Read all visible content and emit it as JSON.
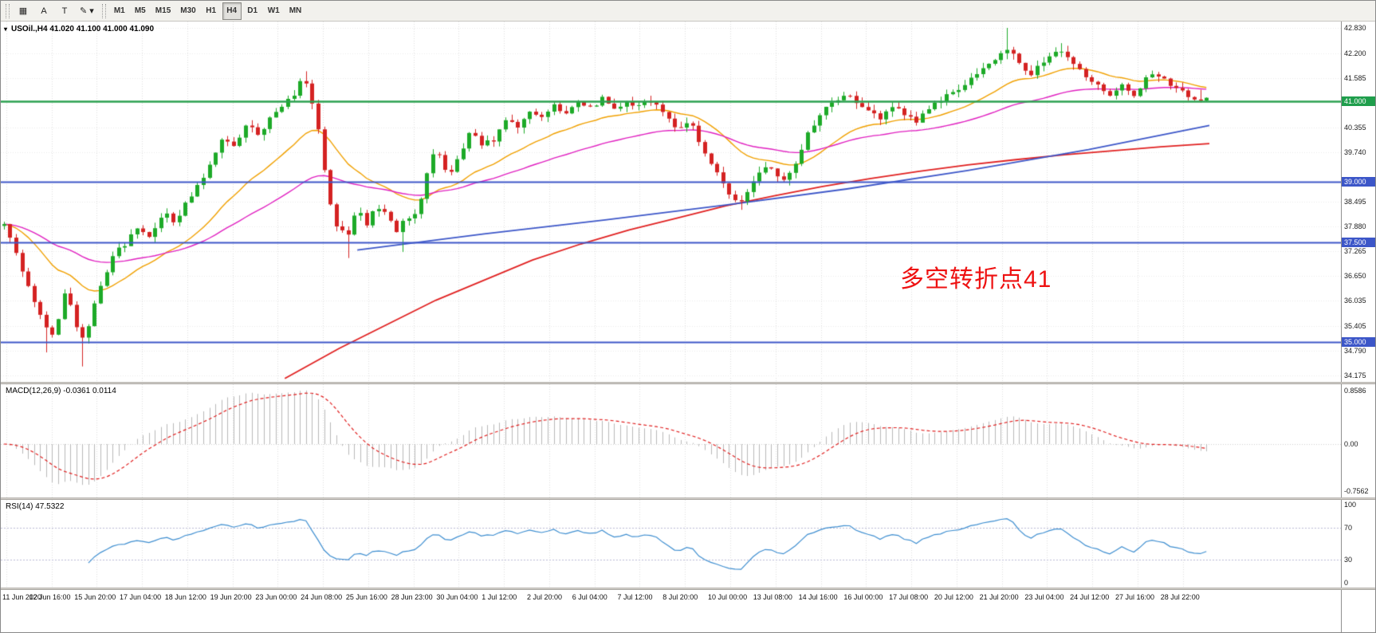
{
  "toolbar": {
    "tools": [
      {
        "name": "chart-grid-icon",
        "glyph": "▦"
      },
      {
        "name": "font-label-tool",
        "glyph": "A"
      },
      {
        "name": "text-tool",
        "glyph": "T"
      },
      {
        "name": "pen-color-tool",
        "glyph": "✎ ▾"
      }
    ],
    "timeframes": [
      "M1",
      "M5",
      "M15",
      "M30",
      "H1",
      "H4",
      "D1",
      "W1",
      "MN"
    ],
    "active_timeframe": "H4"
  },
  "symbol_header": {
    "collapse_icon": "▾",
    "text": "USOil.,H4 41.020 41.100 41.000 41.090"
  },
  "annotation": {
    "text": "多空转折点41",
    "color": "#ee1111"
  },
  "price_axis": {
    "min": 34.175,
    "max": 42.83,
    "labels": [
      "42.830",
      "42.200",
      "41.585",
      "40.355",
      "39.740",
      "38.495",
      "37.880",
      "37.265",
      "36.650",
      "36.035",
      "35.405",
      "34.790",
      "34.175"
    ],
    "label_values": [
      42.83,
      42.2,
      41.585,
      40.355,
      39.74,
      38.495,
      37.88,
      37.265,
      36.65,
      36.035,
      35.405,
      34.79,
      34.175
    ],
    "tags": [
      {
        "text": "41.000",
        "value": 41.0,
        "color": "#1f9e4c"
      },
      {
        "text": "39.000",
        "value": 39.0,
        "color": "#3c56c8"
      },
      {
        "text": "37.500",
        "value": 37.5,
        "color": "#3c56c8"
      },
      {
        "text": "35.000",
        "value": 35.0,
        "color": "#3c56c8"
      }
    ]
  },
  "hlines": [
    {
      "value": 41.0,
      "color": "#2ca050",
      "width": 2.5
    },
    {
      "value": 39.0,
      "color": "#3c56c8",
      "width": 2
    },
    {
      "value": 37.5,
      "color": "#3c56c8",
      "width": 2
    },
    {
      "value": 35.0,
      "color": "#3c56c8",
      "width": 2
    }
  ],
  "chart_data": {
    "type": "candlestick",
    "symbol": "USOil",
    "timeframe": "H4",
    "ohlc_current": {
      "open": 41.02,
      "high": 41.1,
      "low": 41.0,
      "close": 41.09
    },
    "n_candles": 200,
    "candle_up_color": "#1daa28",
    "candle_down_color": "#d42222",
    "price_path": [
      [
        0.0,
        37.9
      ],
      [
        0.01,
        37.2
      ],
      [
        0.022,
        36.3
      ],
      [
        0.034,
        35.4
      ],
      [
        0.042,
        35.1
      ],
      [
        0.05,
        36.3
      ],
      [
        0.058,
        35.7
      ],
      [
        0.064,
        34.95
      ],
      [
        0.072,
        35.6
      ],
      [
        0.082,
        36.6
      ],
      [
        0.092,
        37.2
      ],
      [
        0.102,
        37.5
      ],
      [
        0.112,
        37.9
      ],
      [
        0.122,
        37.55
      ],
      [
        0.132,
        38.25
      ],
      [
        0.142,
        37.95
      ],
      [
        0.152,
        38.5
      ],
      [
        0.162,
        38.9
      ],
      [
        0.172,
        39.5
      ],
      [
        0.182,
        40.15
      ],
      [
        0.192,
        39.85
      ],
      [
        0.202,
        40.45
      ],
      [
        0.212,
        40.1
      ],
      [
        0.222,
        40.6
      ],
      [
        0.232,
        40.85
      ],
      [
        0.242,
        41.25
      ],
      [
        0.249,
        41.55
      ],
      [
        0.256,
        41.05
      ],
      [
        0.262,
        40.2
      ],
      [
        0.27,
        38.6
      ],
      [
        0.278,
        37.8
      ],
      [
        0.286,
        37.6
      ],
      [
        0.294,
        38.3
      ],
      [
        0.302,
        37.85
      ],
      [
        0.31,
        38.45
      ],
      [
        0.318,
        38.15
      ],
      [
        0.326,
        37.8
      ],
      [
        0.334,
        38.1
      ],
      [
        0.344,
        38.3
      ],
      [
        0.352,
        39.2
      ],
      [
        0.36,
        39.9
      ],
      [
        0.368,
        39.15
      ],
      [
        0.378,
        39.6
      ],
      [
        0.388,
        40.3
      ],
      [
        0.398,
        39.9
      ],
      [
        0.408,
        40.1
      ],
      [
        0.418,
        40.6
      ],
      [
        0.428,
        40.3
      ],
      [
        0.438,
        40.8
      ],
      [
        0.448,
        40.6
      ],
      [
        0.458,
        40.9
      ],
      [
        0.468,
        40.7
      ],
      [
        0.478,
        41.0
      ],
      [
        0.488,
        40.85
      ],
      [
        0.498,
        41.1
      ],
      [
        0.508,
        40.8
      ],
      [
        0.518,
        41.0
      ],
      [
        0.528,
        40.9
      ],
      [
        0.538,
        41.05
      ],
      [
        0.55,
        40.7
      ],
      [
        0.56,
        40.3
      ],
      [
        0.57,
        40.5
      ],
      [
        0.58,
        39.9
      ],
      [
        0.592,
        39.3
      ],
      [
        0.604,
        38.7
      ],
      [
        0.614,
        38.45
      ],
      [
        0.622,
        39.0
      ],
      [
        0.632,
        39.4
      ],
      [
        0.642,
        39.2
      ],
      [
        0.65,
        38.95
      ],
      [
        0.658,
        39.5
      ],
      [
        0.668,
        40.2
      ],
      [
        0.678,
        40.7
      ],
      [
        0.688,
        41.0
      ],
      [
        0.698,
        41.15
      ],
      [
        0.708,
        41.05
      ],
      [
        0.718,
        40.8
      ],
      [
        0.728,
        40.6
      ],
      [
        0.738,
        40.9
      ],
      [
        0.748,
        40.7
      ],
      [
        0.758,
        40.5
      ],
      [
        0.768,
        40.8
      ],
      [
        0.778,
        41.0
      ],
      [
        0.788,
        41.3
      ],
      [
        0.798,
        41.4
      ],
      [
        0.808,
        41.6
      ],
      [
        0.818,
        41.9
      ],
      [
        0.828,
        42.1
      ],
      [
        0.836,
        42.35
      ],
      [
        0.844,
        41.95
      ],
      [
        0.852,
        41.65
      ],
      [
        0.86,
        41.85
      ],
      [
        0.87,
        42.1
      ],
      [
        0.88,
        42.3
      ],
      [
        0.888,
        42.0
      ],
      [
        0.896,
        41.7
      ],
      [
        0.904,
        41.45
      ],
      [
        0.912,
        41.3
      ],
      [
        0.92,
        41.2
      ],
      [
        0.93,
        41.4
      ],
      [
        0.94,
        41.2
      ],
      [
        0.95,
        41.55
      ],
      [
        0.96,
        41.7
      ],
      [
        0.97,
        41.45
      ],
      [
        0.98,
        41.2
      ],
      [
        0.99,
        41.05
      ],
      [
        1.0,
        41.09
      ]
    ],
    "wick_overrides": [
      {
        "f": 0.034,
        "low": 34.75
      },
      {
        "f": 0.064,
        "low": 34.4
      },
      {
        "f": 0.249,
        "high": 41.75
      },
      {
        "f": 0.286,
        "low": 37.1
      },
      {
        "f": 0.33,
        "low": 37.25
      },
      {
        "f": 0.614,
        "low": 38.3
      },
      {
        "f": 0.836,
        "high": 42.83
      },
      {
        "f": 0.88,
        "high": 42.45
      }
    ],
    "moving_averages": [
      {
        "name": "ma-fast-orange",
        "color": "#f0a000",
        "period": 20
      },
      {
        "name": "ma-mid-magenta",
        "color": "#e020c0",
        "period": 50
      }
    ],
    "overlay_lines": [
      {
        "name": "ma-slow-red",
        "color": "#e02020",
        "width": 1.8,
        "points": [
          [
            0.235,
            34.1
          ],
          [
            0.28,
            34.85
          ],
          [
            0.32,
            35.45
          ],
          [
            0.36,
            36.05
          ],
          [
            0.4,
            36.55
          ],
          [
            0.44,
            37.05
          ],
          [
            0.48,
            37.45
          ],
          [
            0.52,
            37.8
          ],
          [
            0.56,
            38.1
          ],
          [
            0.6,
            38.4
          ],
          [
            0.64,
            38.65
          ],
          [
            0.68,
            38.88
          ],
          [
            0.72,
            39.08
          ],
          [
            0.76,
            39.26
          ],
          [
            0.8,
            39.42
          ],
          [
            0.84,
            39.55
          ],
          [
            0.88,
            39.67
          ],
          [
            0.92,
            39.77
          ],
          [
            0.96,
            39.87
          ],
          [
            1.0,
            39.95
          ]
        ]
      },
      {
        "name": "trendline-blue",
        "color": "#3c56c8",
        "width": 1.8,
        "points": [
          [
            0.295,
            37.3
          ],
          [
            0.4,
            37.7
          ],
          [
            0.5,
            38.05
          ],
          [
            0.6,
            38.42
          ],
          [
            0.7,
            38.82
          ],
          [
            0.8,
            39.28
          ],
          [
            0.9,
            39.8
          ],
          [
            1.0,
            40.4
          ]
        ]
      }
    ],
    "macd": {
      "label": "MACD(12,26,9) -0.0361 0.0114",
      "fast": 12,
      "slow": 26,
      "signal": 9,
      "axis_labels": [
        "0.8586",
        "0.00",
        "-0.7562"
      ],
      "axis_max": 0.8586,
      "axis_min": -0.7562,
      "hist_color": "#b8b8b8",
      "signal_color": "#e02020"
    },
    "rsi": {
      "label": "RSI(14) 47.5322",
      "period": 14,
      "levels": [
        70,
        30
      ],
      "axis_labels": [
        "100",
        "70",
        "30",
        "0"
      ],
      "color": "#3e8ed0"
    },
    "time_labels": [
      "11 Jun 2020",
      "12 Jun 16:00",
      "15 Jun 20:00",
      "17 Jun 04:00",
      "18 Jun 12:00",
      "19 Jun 20:00",
      "23 Jun 00:00",
      "24 Jun 08:00",
      "25 Jun 16:00",
      "28 Jun 23:00",
      "30 Jun 04:00",
      "1 Jul 12:00",
      "2 Jul 20:00",
      "6 Jul 04:00",
      "7 Jul 12:00",
      "8 Jul 20:00",
      "10 Jul 00:00",
      "13 Jul 08:00",
      "14 Jul 16:00",
      "16 Jul 00:00",
      "17 Jul 08:00",
      "20 Jul 12:00",
      "21 Jul 20:00",
      "23 Jul 04:00",
      "24 Jul 12:00",
      "27 Jul 16:00",
      "28 Jul 22:00"
    ]
  }
}
